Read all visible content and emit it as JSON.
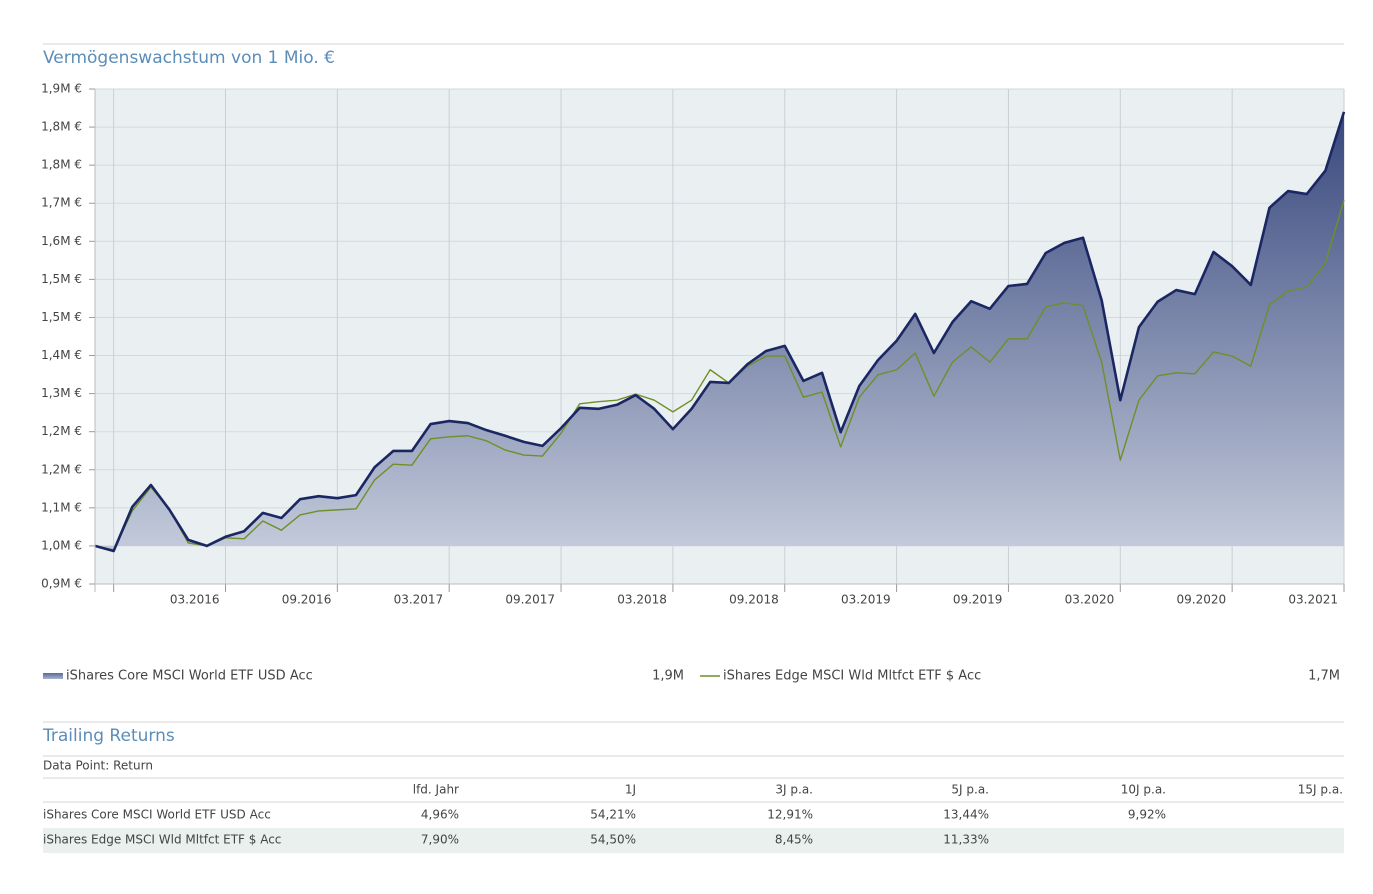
{
  "chart_data": {
    "type": "area-line",
    "title": "Vermögenswachstum von 1 Mio. €",
    "categories": [
      null,
      null,
      null,
      null,
      null,
      null,
      null,
      "03.2016",
      null,
      null,
      null,
      null,
      null,
      "09.2016",
      null,
      null,
      null,
      null,
      null,
      "03.2017",
      null,
      null,
      null,
      null,
      null,
      "09.2017",
      null,
      null,
      null,
      null,
      null,
      "03.2018",
      null,
      null,
      null,
      null,
      null,
      "09.2018",
      null,
      null,
      null,
      null,
      null,
      "03.2019",
      null,
      null,
      null,
      null,
      null,
      "09.2019",
      null,
      null,
      null,
      null,
      null,
      "03.2020",
      null,
      null,
      null,
      null,
      null,
      "09.2020",
      null,
      null,
      null,
      null,
      null,
      "03.2021"
    ],
    "series": [
      {
        "name": "iShares Core MSCI World ETF USD Acc",
        "color": "#1b2763",
        "legend_value": "1,9M",
        "values": [
          1.015,
          1.005,
          1.092,
          1.135,
          1.086,
          1.027,
          1.015,
          1.033,
          1.044,
          1.08,
          1.07,
          1.107,
          1.113,
          1.109,
          1.115,
          1.17,
          1.202,
          1.202,
          1.255,
          1.261,
          1.257,
          1.243,
          1.232,
          1.22,
          1.212,
          1.247,
          1.287,
          1.285,
          1.293,
          1.312,
          1.285,
          1.245,
          1.285,
          1.338,
          1.336,
          1.373,
          1.399,
          1.409,
          1.34,
          1.356,
          1.239,
          1.33,
          1.381,
          1.419,
          1.472,
          1.395,
          1.456,
          1.497,
          1.482,
          1.527,
          1.531,
          1.592,
          1.612,
          1.622,
          1.499,
          1.302,
          1.446,
          1.496,
          1.519,
          1.511,
          1.594,
          1.566,
          1.529,
          1.681,
          1.714,
          1.708,
          1.754,
          1.87
        ]
      },
      {
        "name": "iShares Edge MSCI Wld Mltfct ETF $ Acc",
        "color": "#6f8f28",
        "legend_value": "1,7M",
        "values": [
          1.015,
          1.007,
          1.084,
          1.131,
          1.086,
          1.021,
          1.015,
          1.031,
          1.029,
          1.064,
          1.046,
          1.076,
          1.084,
          1.086,
          1.088,
          1.145,
          1.176,
          1.174,
          1.226,
          1.23,
          1.232,
          1.222,
          1.204,
          1.194,
          1.192,
          1.237,
          1.295,
          1.299,
          1.302,
          1.314,
          1.302,
          1.279,
          1.302,
          1.362,
          1.336,
          1.369,
          1.389,
          1.389,
          1.308,
          1.318,
          1.21,
          1.308,
          1.352,
          1.362,
          1.395,
          1.31,
          1.377,
          1.407,
          1.377,
          1.423,
          1.423,
          1.486,
          1.494,
          1.488,
          1.377,
          1.184,
          1.302,
          1.35,
          1.356,
          1.354,
          1.397,
          1.389,
          1.369,
          1.49,
          1.517,
          1.525,
          1.572,
          1.696
        ]
      }
    ],
    "ylim": [
      0.94,
      1.915
    ],
    "yticks": [
      {
        "value": 0.94,
        "label": "0,9M €"
      },
      {
        "value": 1.015,
        "label": "1,0M €"
      },
      {
        "value": 1.09,
        "label": "1,1M €"
      },
      {
        "value": 1.165,
        "label": "1,2M €"
      },
      {
        "value": 1.24,
        "label": "1,2M €"
      },
      {
        "value": 1.315,
        "label": "1,3M €"
      },
      {
        "value": 1.39,
        "label": "1,4M €"
      },
      {
        "value": 1.465,
        "label": "1,5M €"
      },
      {
        "value": 1.54,
        "label": "1,5M €"
      },
      {
        "value": 1.615,
        "label": "1,6M €"
      },
      {
        "value": 1.69,
        "label": "1,7M €"
      },
      {
        "value": 1.765,
        "label": "1,8M €"
      },
      {
        "value": 1.84,
        "label": "1,8M €"
      },
      {
        "value": 1.915,
        "label": "1,9M €"
      }
    ],
    "grid": true
  },
  "trailing_returns": {
    "title": "Trailing Returns",
    "data_point": "Data Point: Return",
    "columns": [
      "lfd. Jahr",
      "1J",
      "3J p.a.",
      "5J p.a.",
      "10J p.a.",
      "15J p.a."
    ],
    "rows": [
      {
        "name": "iShares Core MSCI World ETF USD Acc",
        "values": [
          "4,96%",
          "54,21%",
          "12,91%",
          "13,44%",
          "9,92%",
          null
        ]
      },
      {
        "name": "iShares Edge MSCI Wld Mltfct ETF $ Acc",
        "values": [
          "7,90%",
          "54,50%",
          "8,45%",
          "11,33%",
          null,
          null
        ]
      }
    ]
  }
}
